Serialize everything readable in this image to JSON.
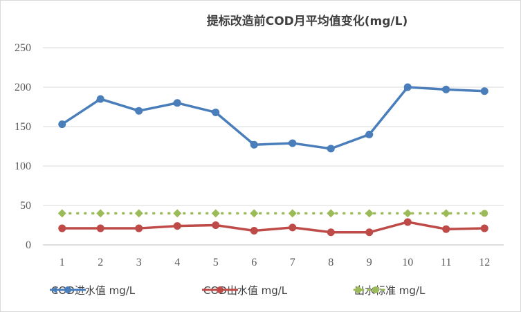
{
  "chart_data": {
    "type": "line",
    "title": "提标改造前COD月平均值变化(mg/L)",
    "categories": [
      "1",
      "2",
      "3",
      "4",
      "5",
      "6",
      "7",
      "8",
      "9",
      "10",
      "11",
      "12"
    ],
    "y_ticks": [
      "0",
      "50",
      "100",
      "150",
      "200",
      "250"
    ],
    "ylim": [
      0,
      250
    ],
    "grid": true,
    "legend_position": "bottom",
    "series": [
      {
        "name": "COD进水值 mg/L",
        "color": "#4a7ebb",
        "marker": "circle",
        "line": "solid",
        "values": [
          153,
          185,
          170,
          180,
          168,
          127,
          129,
          122,
          140,
          200,
          197,
          195
        ]
      },
      {
        "name": "COD出水值 mg/L",
        "color": "#be4b48",
        "marker": "circle",
        "line": "solid",
        "values": [
          21,
          21,
          21,
          24,
          25,
          18,
          22,
          16,
          16,
          29,
          20,
          21
        ]
      },
      {
        "name": "出水标准 mg/L",
        "color": "#9bbb59",
        "marker": "diamond",
        "line": "dotted",
        "values": [
          40,
          40,
          40,
          40,
          40,
          40,
          40,
          40,
          40,
          40,
          40,
          40
        ]
      }
    ]
  }
}
